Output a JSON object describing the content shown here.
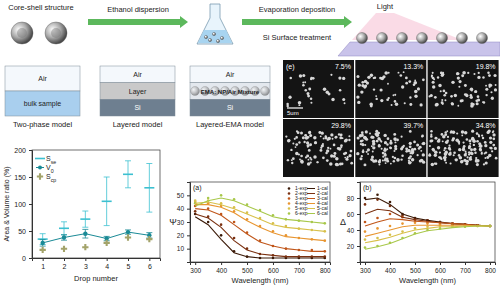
{
  "diagram": {
    "flow": [
      "Core-shell structure",
      "Ethanol dispersion",
      "Evaporation deposition",
      "Si Surface treatment"
    ],
    "light": "Light",
    "models": [
      {
        "label": "Two-phase model",
        "layers": [
          "Air",
          "bulk sample"
        ]
      },
      {
        "label": "Layered model",
        "layers": [
          "Air",
          "Layer",
          "Si"
        ]
      },
      {
        "label": "Layered-EMA model",
        "layers": [
          "Air",
          "EMA: NP/Air Mixture",
          "Si"
        ]
      }
    ],
    "sem": {
      "panel": "(e)",
      "scale": "5um",
      "labels": [
        "7.5%",
        "13.3%",
        "19.8%",
        "29.8%",
        "39.7%",
        "34.8%"
      ]
    }
  },
  "chart_data": [
    {
      "type": "line",
      "x": [
        1,
        2,
        3,
        4,
        5,
        6
      ],
      "xlim": [
        0.5,
        6.5
      ],
      "xticks": [
        1,
        2,
        3,
        4,
        5,
        6
      ],
      "ylim": [
        0,
        200
      ],
      "yticks": [
        0,
        50,
        100,
        150,
        200
      ],
      "x_label": "Drop number",
      "y_label": "Area & Volume ratio (%)",
      "legend": "top-left",
      "series": [
        {
          "name": "Sse",
          "type": "scatter",
          "marker": "dash",
          "color": "#3cc0d0",
          "values": [
            35,
            55,
            72,
            105,
            155,
            130
          ],
          "error": [
            10,
            12,
            15,
            45,
            25,
            45
          ]
        },
        {
          "name": "V0",
          "type": "line",
          "marker": "circle",
          "color": "#1a8a96",
          "values": [
            28,
            38,
            45,
            36,
            48,
            42
          ],
          "error": [
            6,
            5,
            8,
            4,
            4,
            5
          ]
        },
        {
          "name": "Scp",
          "type": "scatter",
          "marker": "cross",
          "color": "#a3a36a",
          "values": [
            15,
            17,
            20,
            28,
            38,
            35
          ]
        }
      ]
    },
    {
      "type": "line",
      "title": "(a)",
      "x": [
        300,
        350,
        400,
        450,
        500,
        550,
        600,
        650,
        700,
        750,
        800
      ],
      "xlim": [
        280,
        820
      ],
      "xticks": [
        300,
        400,
        500,
        600,
        700,
        800
      ],
      "ylim": [
        0,
        60
      ],
      "yticks": [
        10,
        20,
        30,
        40,
        50
      ],
      "x_label": "Wavelength (nm)",
      "y_label": "Ψ",
      "legend": "top-right",
      "series": [
        {
          "name": "1-exp",
          "marker": "circle",
          "line_style": "none",
          "color": "#3b1a08",
          "values": [
            36,
            30,
            20,
            8,
            4,
            3,
            3,
            3,
            3,
            3,
            3
          ]
        },
        {
          "name": "2-exp",
          "marker": "circle",
          "line_style": "none",
          "color": "#7a3010",
          "values": [
            38,
            34,
            28,
            18,
            10,
            6,
            5,
            4,
            4,
            4,
            4
          ]
        },
        {
          "name": "3-exp",
          "marker": "circle",
          "line_style": "none",
          "color": "#c0561a",
          "values": [
            42,
            40,
            36,
            30,
            22,
            16,
            12,
            10,
            9,
            9,
            8
          ]
        },
        {
          "name": "4-exp",
          "marker": "circle",
          "line_style": "none",
          "color": "#e89530",
          "values": [
            45,
            44,
            42,
            38,
            32,
            27,
            23,
            20,
            18,
            17,
            16
          ]
        },
        {
          "name": "5-exp",
          "marker": "circle",
          "line_style": "none",
          "color": "#d8c04a",
          "values": [
            46,
            46,
            44,
            41,
            37,
            33,
            29,
            27,
            25,
            24,
            23
          ]
        },
        {
          "name": "6-exp",
          "marker": "circle",
          "line_style": "none",
          "color": "#a8c84a",
          "values": [
            44,
            48,
            50,
            47,
            43,
            39,
            35,
            32,
            31,
            30,
            29
          ]
        },
        {
          "name": "1-cal",
          "marker": "none",
          "line_style": "solid",
          "color": "#3b1a08",
          "values": [
            34,
            28,
            17,
            7,
            4,
            3,
            3,
            3,
            3,
            3,
            3
          ]
        },
        {
          "name": "2-cal",
          "marker": "none",
          "line_style": "solid",
          "color": "#7a3010",
          "values": [
            36,
            33,
            26,
            16,
            9,
            6,
            5,
            4,
            4,
            4,
            4
          ]
        },
        {
          "name": "3-cal",
          "marker": "none",
          "line_style": "solid",
          "color": "#c0561a",
          "values": [
            40,
            39,
            35,
            28,
            21,
            15,
            12,
            10,
            9,
            8,
            8
          ]
        },
        {
          "name": "4-cal",
          "marker": "none",
          "line_style": "solid",
          "color": "#e89530",
          "values": [
            43,
            43,
            41,
            37,
            31,
            26,
            22,
            19,
            18,
            17,
            16
          ]
        },
        {
          "name": "5-cal",
          "marker": "none",
          "line_style": "solid",
          "color": "#d8c04a",
          "values": [
            44,
            45,
            43,
            40,
            36,
            32,
            28,
            26,
            25,
            24,
            23
          ]
        },
        {
          "name": "6-cal",
          "marker": "none",
          "line_style": "solid",
          "color": "#a8c84a",
          "values": [
            42,
            46,
            48,
            46,
            42,
            38,
            34,
            32,
            31,
            30,
            29
          ]
        }
      ]
    },
    {
      "type": "line",
      "title": "(b)",
      "x": [
        300,
        350,
        400,
        450,
        500,
        550,
        600,
        650,
        700,
        750,
        800
      ],
      "xlim": [
        280,
        820
      ],
      "xticks": [
        300,
        400,
        500,
        600,
        700,
        800
      ],
      "ylim": [
        0,
        100
      ],
      "yticks": [
        20,
        40,
        60,
        80
      ],
      "x_label": "Wavelength (nm)",
      "y_label": "Δ",
      "series": [
        {
          "marker": "circle",
          "line_style": "none",
          "color": "#3b1a08",
          "values": [
            80,
            84,
            75,
            60,
            55,
            52,
            50,
            48,
            47,
            46,
            45
          ]
        },
        {
          "marker": "circle",
          "line_style": "none",
          "color": "#7a3010",
          "values": [
            72,
            78,
            70,
            58,
            54,
            52,
            50,
            48,
            47,
            46,
            45
          ]
        },
        {
          "marker": "circle",
          "line_style": "none",
          "color": "#c0561a",
          "values": [
            50,
            55,
            60,
            56,
            52,
            50,
            49,
            48,
            47,
            46,
            45
          ]
        },
        {
          "marker": "circle",
          "line_style": "none",
          "color": "#e89530",
          "values": [
            38,
            42,
            45,
            48,
            49,
            48,
            47,
            47,
            46,
            46,
            45
          ]
        },
        {
          "marker": "circle",
          "line_style": "none",
          "color": "#d8c04a",
          "values": [
            28,
            30,
            34,
            38,
            42,
            44,
            45,
            45,
            45,
            45,
            45
          ]
        },
        {
          "marker": "circle",
          "line_style": "none",
          "color": "#a8c84a",
          "values": [
            18,
            20,
            24,
            30,
            36,
            40,
            42,
            44,
            44,
            45,
            45
          ]
        },
        {
          "marker": "none",
          "line_style": "solid",
          "color": "#3b1a08",
          "values": [
            78,
            80,
            72,
            60,
            55,
            52,
            50,
            48,
            47,
            46,
            45
          ]
        },
        {
          "marker": "none",
          "line_style": "solid",
          "color": "#7a3010",
          "values": [
            60,
            66,
            64,
            56,
            53,
            51,
            49,
            48,
            47,
            46,
            45
          ]
        },
        {
          "marker": "none",
          "line_style": "solid",
          "color": "#c0561a",
          "values": [
            45,
            50,
            54,
            53,
            51,
            50,
            49,
            48,
            47,
            46,
            45
          ]
        },
        {
          "marker": "none",
          "line_style": "solid",
          "color": "#e89530",
          "values": [
            32,
            36,
            40,
            44,
            46,
            46,
            46,
            46,
            46,
            45,
            45
          ]
        },
        {
          "marker": "none",
          "line_style": "solid",
          "color": "#d8c04a",
          "values": [
            24,
            27,
            31,
            36,
            40,
            42,
            44,
            44,
            45,
            45,
            45
          ]
        },
        {
          "marker": "none",
          "line_style": "solid",
          "color": "#a8c84a",
          "values": [
            16,
            19,
            23,
            29,
            35,
            39,
            41,
            43,
            44,
            45,
            45
          ]
        }
      ]
    }
  ]
}
